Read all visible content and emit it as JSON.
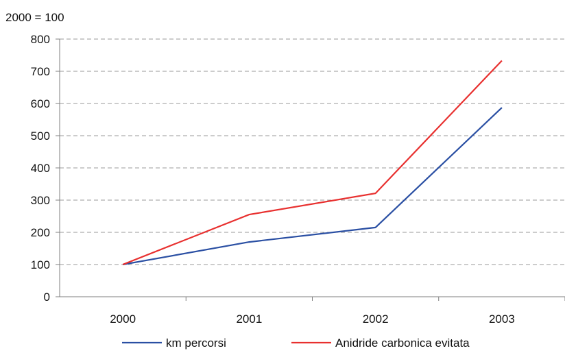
{
  "chart_data": {
    "type": "line",
    "unit_label": "2000 = 100",
    "categories": [
      "2000",
      "2001",
      "2002",
      "2003"
    ],
    "series": [
      {
        "name": "km percorsi",
        "color": "#2a4fa3",
        "values": [
          100,
          170,
          215,
          587
        ]
      },
      {
        "name": "Anidride carbonica evitata",
        "color": "#e8302f",
        "values": [
          100,
          255,
          321,
          733
        ]
      }
    ],
    "ylim": [
      0,
      800
    ],
    "yticks": [
      0,
      100,
      200,
      300,
      400,
      500,
      600,
      700,
      800
    ],
    "grid": true,
    "legend_position": "bottom"
  }
}
